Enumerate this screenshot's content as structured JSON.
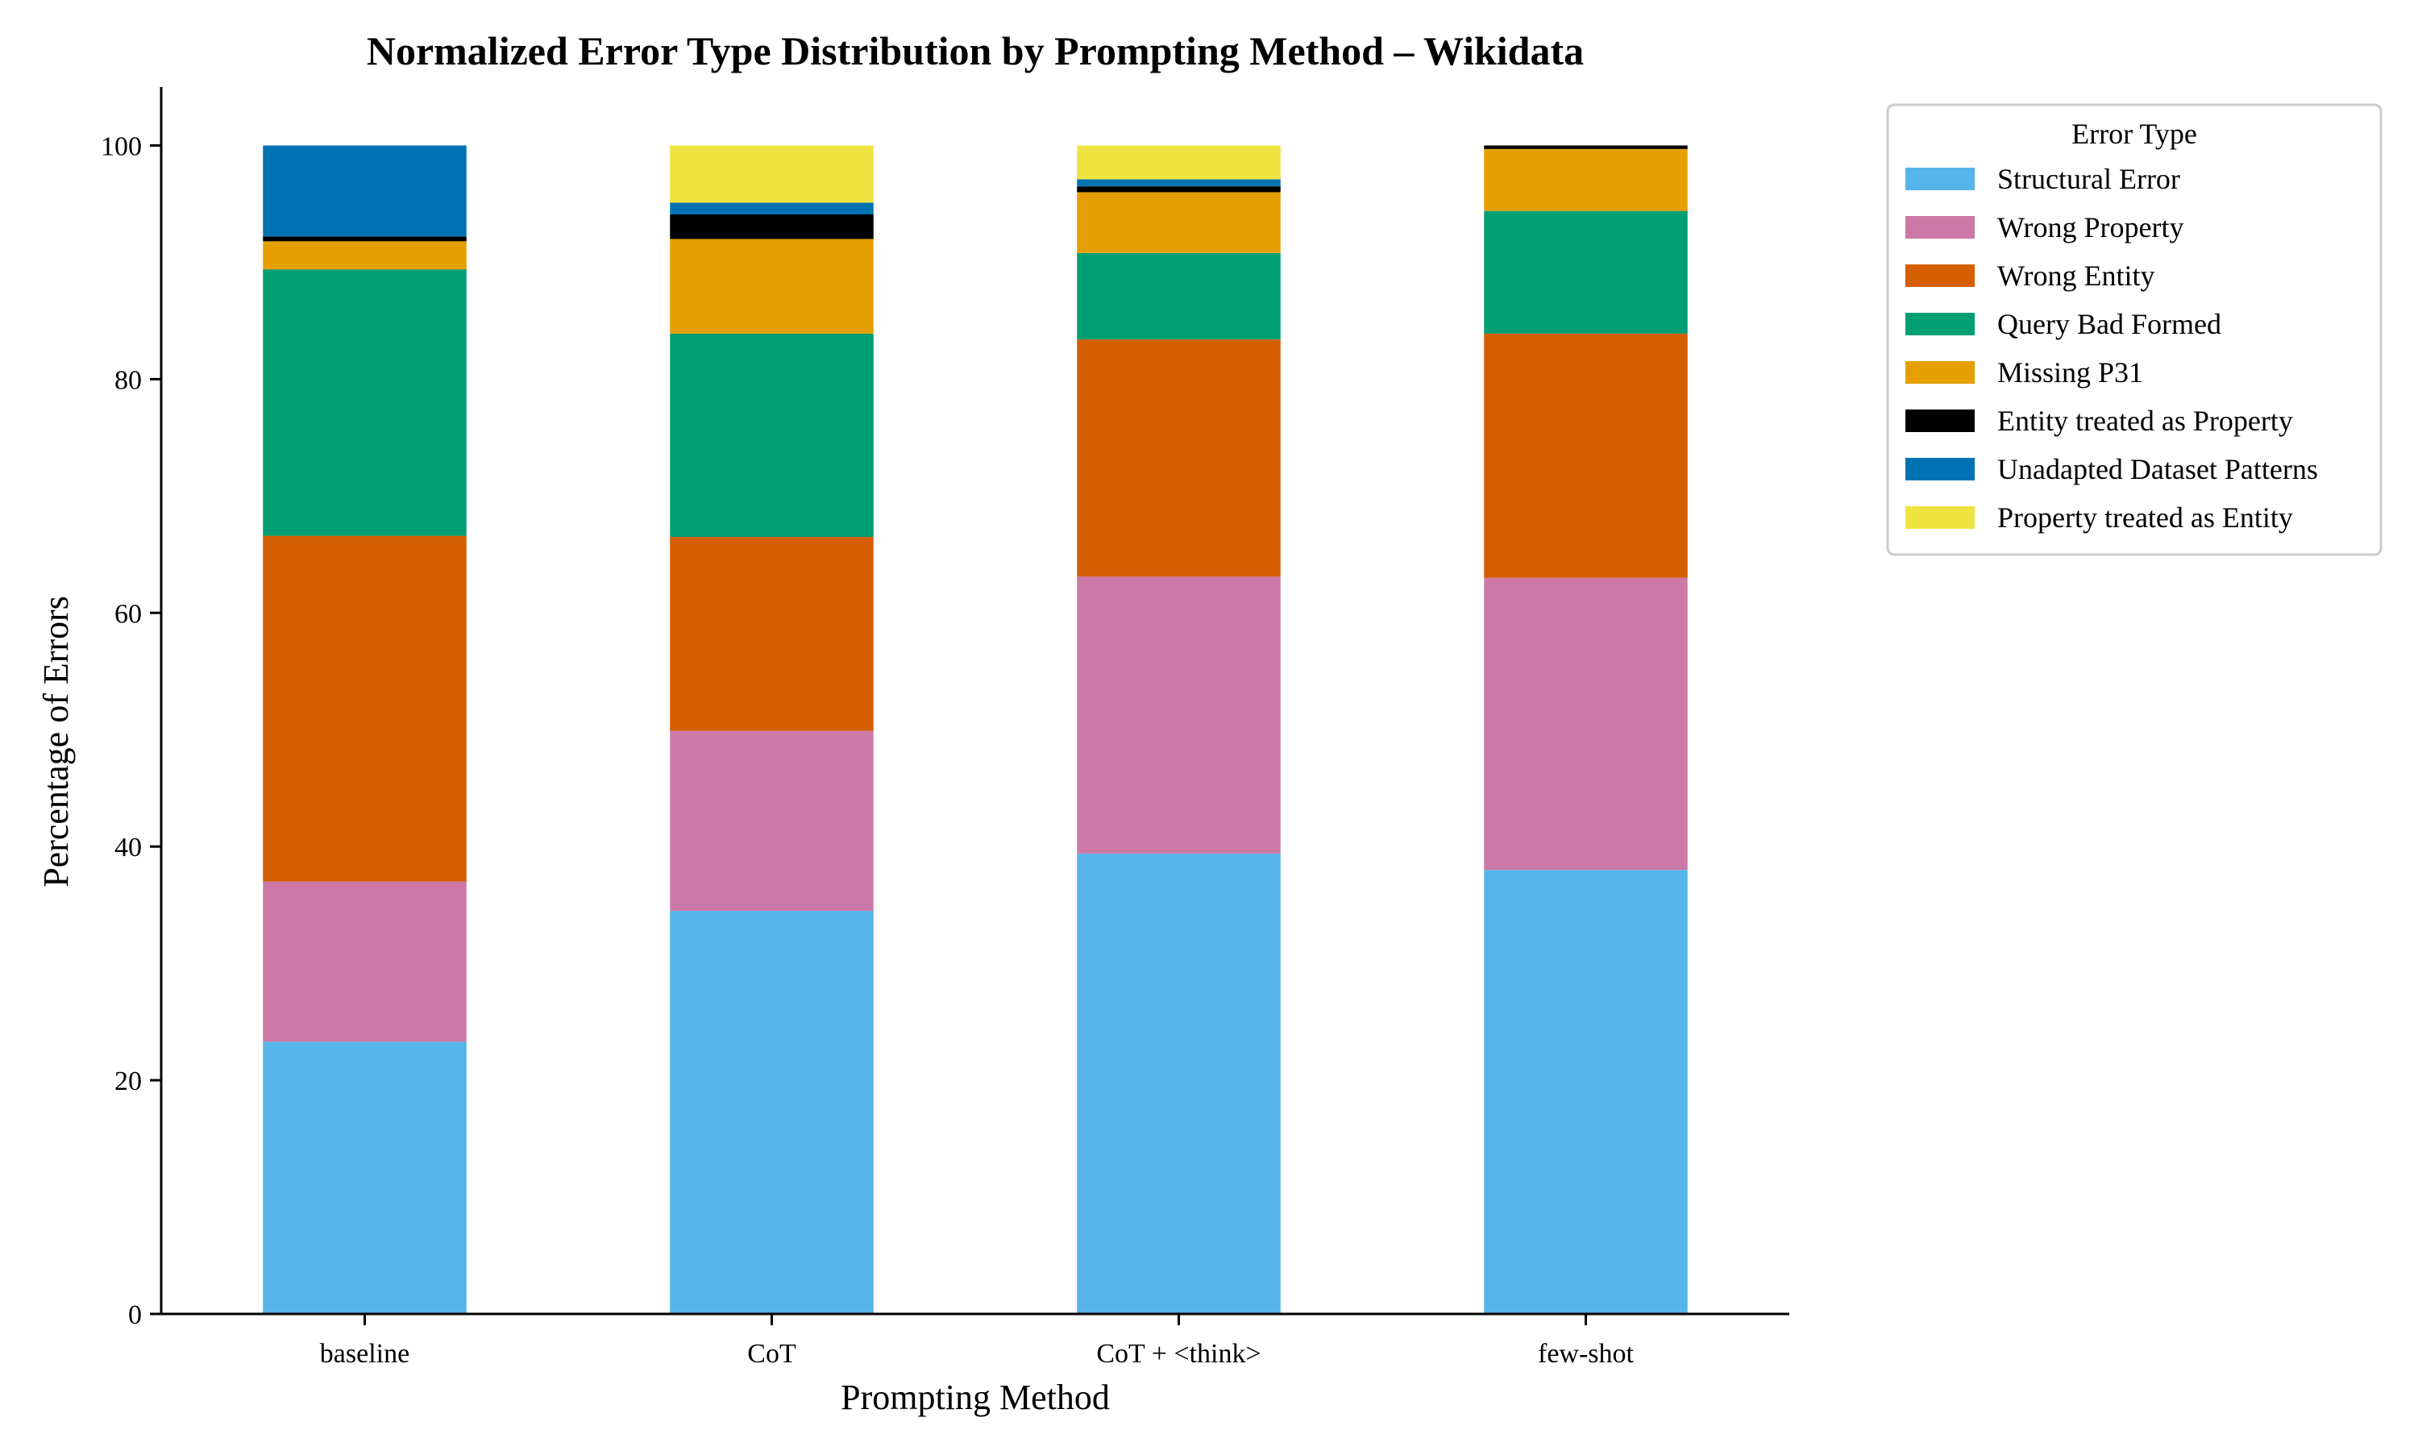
{
  "chart_data": {
    "type": "bar",
    "stacked": true,
    "title": "Normalized Error Type Distribution by Prompting Method – Wikidata",
    "xlabel": "Prompting Method",
    "ylabel": "Percentage of Errors",
    "ylim": [
      0,
      105
    ],
    "yticks": [
      0,
      20,
      40,
      60,
      80,
      100
    ],
    "grid": false,
    "legend_title": "Error Type",
    "legend_position": "outside-right-top",
    "categories": [
      "baseline",
      "CoT",
      "CoT + <think>",
      "few-shot"
    ],
    "series": [
      {
        "name": "Structural Error",
        "color": "#56B4E9",
        "values": [
          23.3,
          34.5,
          39.4,
          38.0
        ]
      },
      {
        "name": "Wrong Property",
        "color": "#CC79A7",
        "values": [
          13.7,
          15.4,
          23.7,
          25.0
        ]
      },
      {
        "name": "Wrong Entity",
        "color": "#D55E00",
        "values": [
          29.6,
          16.6,
          20.3,
          20.9
        ]
      },
      {
        "name": "Query Bad Formed",
        "color": "#009E73",
        "values": [
          22.8,
          17.4,
          7.4,
          10.5
        ]
      },
      {
        "name": "Missing P31",
        "color": "#E69F00",
        "values": [
          2.4,
          8.1,
          5.2,
          5.3
        ]
      },
      {
        "name": "Entity treated as Property",
        "color": "#000000",
        "values": [
          0.4,
          2.1,
          0.5,
          0.3
        ]
      },
      {
        "name": "Unadapted Dataset Patterns",
        "color": "#0072B2",
        "values": [
          7.8,
          1.0,
          0.6,
          0.0
        ]
      },
      {
        "name": "Property treated as Entity",
        "color": "#F0E442",
        "values": [
          0.0,
          4.9,
          2.9,
          0.0
        ]
      }
    ]
  }
}
